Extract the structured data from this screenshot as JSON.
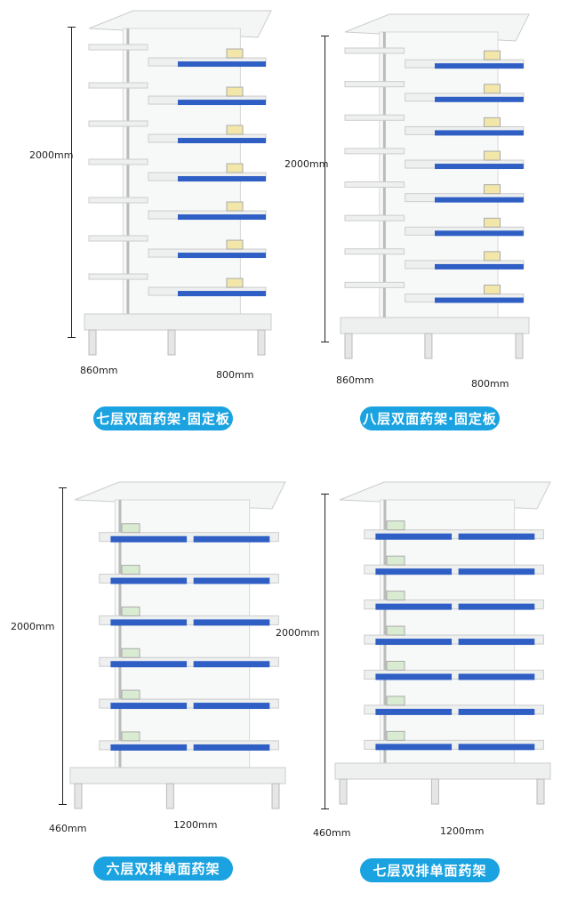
{
  "colors": {
    "accent": "#1aa3e0",
    "shelf_front": "#2f5fc4",
    "shelf_body": "#eef0f0"
  },
  "products": [
    {
      "label": "七层双面药架·固定板",
      "height": "2000mm",
      "depth": "860mm",
      "width": "800mm",
      "layers": 7,
      "type": "double-sided"
    },
    {
      "label": "八层双面药架·固定板",
      "height": "2000mm",
      "depth": "860mm",
      "width": "800mm",
      "layers": 8,
      "type": "double-sided"
    },
    {
      "label": "六层双排单面药架",
      "height": "2000mm",
      "depth": "460mm",
      "width": "1200mm",
      "layers": 6,
      "type": "single-sided"
    },
    {
      "label": "七层双排单面药架",
      "height": "2000mm",
      "depth": "460mm",
      "width": "1200mm",
      "layers": 7,
      "type": "single-sided"
    }
  ]
}
